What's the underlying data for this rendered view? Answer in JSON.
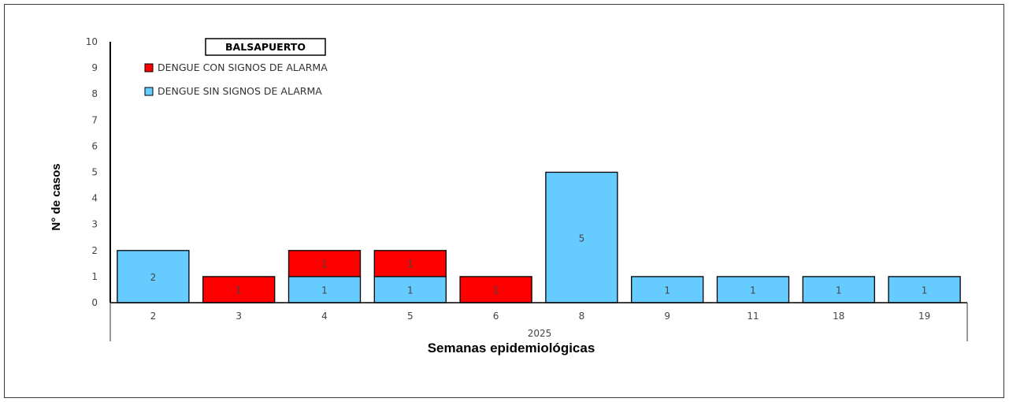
{
  "chart_data": {
    "type": "bar",
    "stacked": true,
    "title": "BALSAPUERTO",
    "xlabel": "Semanas epidemiológicas",
    "ylabel": "N° de casos",
    "year_label": "2025",
    "categories": [
      "2",
      "3",
      "4",
      "5",
      "6",
      "8",
      "9",
      "11",
      "18",
      "19"
    ],
    "ylim": [
      0,
      10
    ],
    "yticks": [
      0,
      1,
      2,
      3,
      4,
      5,
      6,
      7,
      8,
      9,
      10
    ],
    "grid": false,
    "legend_position": "top-left",
    "series": [
      {
        "name": "DENGUE SIN SIGNOS DE ALARMA",
        "color": "#66CCFF",
        "values": [
          2,
          0,
          1,
          1,
          0,
          5,
          1,
          1,
          1,
          1
        ]
      },
      {
        "name": "DENGUE CON SIGNOS DE ALARMA",
        "color": "#FF0000",
        "values": [
          0,
          1,
          1,
          1,
          1,
          0,
          0,
          0,
          0,
          0
        ]
      }
    ],
    "legend_order": [
      1,
      0
    ]
  }
}
